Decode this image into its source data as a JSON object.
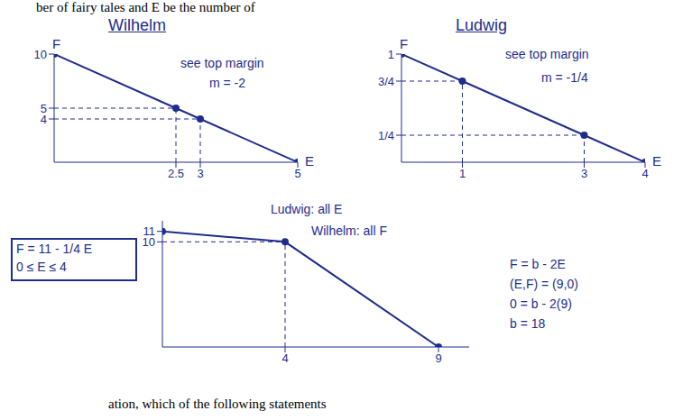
{
  "page_text": {
    "top": "ber of fairy tales and E be the number of",
    "bottom": "ation, which of the following statements"
  },
  "chart_data": [
    {
      "type": "line",
      "title": "Wilhelm",
      "x_label": "E",
      "y_label": "F",
      "x": [
        0,
        2.5,
        3,
        5
      ],
      "values": [
        10,
        5,
        4,
        0
      ],
      "xlim": [
        0,
        5
      ],
      "ylim": [
        0,
        10
      ],
      "xticks": [
        2.5,
        3,
        5
      ],
      "yticks": [
        4,
        5,
        10
      ],
      "color": "#1f2d8c",
      "marker": "circle",
      "annotations": [
        "see top margin",
        "m = -2"
      ]
    },
    {
      "type": "line",
      "title": "Ludwig",
      "x_label": "E",
      "y_label": "F",
      "x": [
        0,
        1,
        3,
        4
      ],
      "values": [
        1,
        0.75,
        0.25,
        0
      ],
      "xlim": [
        0,
        4
      ],
      "ylim": [
        0,
        1
      ],
      "xticks": [
        1,
        3,
        4
      ],
      "yticks": [
        {
          "value": 0.25,
          "label": "1/4"
        },
        {
          "value": 0.75,
          "label": "3/4"
        },
        1
      ],
      "color": "#1f2d8c",
      "marker": "circle",
      "annotations": [
        "see top margin",
        "m = -1/4"
      ]
    },
    {
      "type": "line",
      "x": [
        0,
        4,
        9
      ],
      "values": [
        11,
        10,
        0
      ],
      "xlim": [
        0,
        10
      ],
      "ylim": [
        0,
        12
      ],
      "xticks": [
        4,
        9
      ],
      "yticks": [
        10,
        11
      ],
      "color": "#1f2d8c",
      "marker": "circle",
      "annotations": [
        "Ludwig: all E",
        "Wilhelm: all F",
        "F = 11 - 1/4 E",
        "0 ≤ E ≤ 4",
        "F = b - 2E",
        "(E,F) = (9,0)",
        "0 = b - 2(9)",
        "b = 18"
      ]
    }
  ]
}
